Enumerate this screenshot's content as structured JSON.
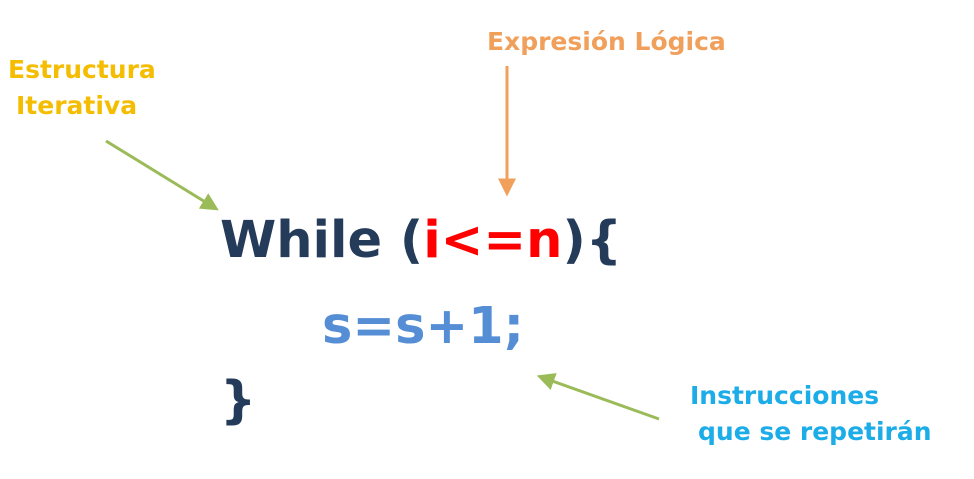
{
  "annotations": {
    "structure_label": [
      "Estructura",
      "Iterativa"
    ],
    "condition_label": "Expresión Lógica",
    "body_label": [
      "Instrucciones",
      "que se repetirán"
    ]
  },
  "code": {
    "keyword": "While",
    "open_paren": "(",
    "condition": "i<=n",
    "close_paren_brace": "){",
    "statement": "s=s+1;",
    "close_brace": "}"
  },
  "colors": {
    "structure_label": "#f5bd02",
    "condition_label": "#f0a05a",
    "body_label": "#1cace8",
    "code_keyword": "#243b5a",
    "code_condition": "#ff0000",
    "code_statement": "#558ed5",
    "arrow_green": "#9bbb59",
    "arrow_orange": "#f0a05a"
  }
}
